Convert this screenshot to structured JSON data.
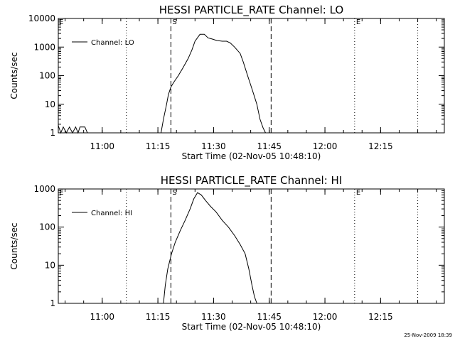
{
  "chart_data": [
    {
      "type": "line",
      "title": "HESSI PARTICLE_RATE Channel: LO",
      "xlabel": "Start Time (02-Nov-05 10:48:10)",
      "ylabel": "Counts/sec",
      "yscale": "log",
      "ylim": [
        1,
        10000
      ],
      "xlim": [
        "10:48:10",
        "12:32:10"
      ],
      "x_ticks": [
        "11:00",
        "11:15",
        "11:30",
        "11:45",
        "12:00",
        "12:15"
      ],
      "y_ticks": [
        "1",
        "10",
        "100",
        "1000",
        "10000"
      ],
      "legend": "top-left",
      "series": [
        {
          "name": "Channel: LO",
          "x": [
            "10:48:10",
            "10:48:50",
            "10:49:30",
            "10:50:20",
            "10:51:10",
            "10:52:00",
            "10:52:50",
            "10:53:30",
            "10:54:00",
            "10:55:20",
            "10:56:00",
            "11:15:50",
            "11:16:30",
            "11:17:20",
            "11:17:50",
            "11:18:30",
            "11:19:20",
            "11:20:30",
            "11:21:40",
            "11:23:10",
            "11:24:10",
            "11:25:00",
            "11:26:20",
            "11:27:30",
            "11:28:30",
            "11:29:40",
            "11:30:50",
            "11:32:20",
            "11:33:30",
            "11:34:30",
            "11:35:40",
            "11:37:10",
            "11:38:00",
            "11:39:10",
            "11:40:30",
            "11:41:40",
            "11:42:30",
            "11:43:20",
            "11:44:00"
          ],
          "y": [
            1.8,
            1,
            1.6,
            1,
            1.6,
            1,
            1.6,
            1,
            1.6,
            1.6,
            1,
            1,
            3,
            10,
            22,
            40,
            60,
            100,
            180,
            400,
            800,
            1600,
            2800,
            2800,
            2100,
            1900,
            1700,
            1600,
            1600,
            1400,
            1000,
            600,
            300,
            100,
            30,
            10,
            3,
            1.5,
            1
          ]
        }
      ],
      "markers": [
        {
          "type": "dotted",
          "x": "11:06:30",
          "label": ""
        },
        {
          "type": "dashed",
          "x": "11:18:30",
          "label": "S"
        },
        {
          "type": "dashed",
          "x": "11:45:30",
          "label": ""
        },
        {
          "type": "dotted",
          "x": "12:08:00",
          "label": "E"
        },
        {
          "type": "dotted",
          "x": "12:25:00",
          "label": ""
        }
      ],
      "corner_label": "E"
    },
    {
      "type": "line",
      "title": "HESSI PARTICLE_RATE Channel: HI",
      "xlabel": "Start Time (02-Nov-05 10:48:10)",
      "ylabel": "Counts/sec",
      "yscale": "log",
      "ylim": [
        1,
        1000
      ],
      "xlim": [
        "10:48:10",
        "12:32:10"
      ],
      "x_ticks": [
        "11:00",
        "11:15",
        "11:30",
        "11:45",
        "12:00",
        "12:15"
      ],
      "y_ticks": [
        "1",
        "10",
        "100",
        "1000"
      ],
      "legend": "top-left",
      "series": [
        {
          "name": "Channel: HI",
          "x": [
            "11:16:30",
            "11:17:00",
            "11:17:40",
            "11:18:40",
            "11:19:40",
            "11:21:00",
            "11:22:20",
            "11:23:40",
            "11:24:40",
            "11:25:40",
            "11:26:40",
            "11:27:50",
            "11:29:10",
            "11:30:40",
            "11:32:20",
            "11:34:00",
            "11:35:40",
            "11:37:10",
            "11:38:30",
            "11:39:30",
            "11:40:20",
            "11:41:00",
            "11:41:40"
          ],
          "y": [
            1,
            3,
            8,
            20,
            40,
            80,
            150,
            300,
            550,
            800,
            700,
            500,
            350,
            250,
            150,
            100,
            60,
            35,
            20,
            8,
            3,
            1.5,
            1
          ]
        }
      ],
      "markers": [
        {
          "type": "dotted",
          "x": "11:06:30",
          "label": ""
        },
        {
          "type": "dashed",
          "x": "11:18:30",
          "label": "S"
        },
        {
          "type": "dashed",
          "x": "11:45:30",
          "label": ""
        },
        {
          "type": "dotted",
          "x": "12:08:00",
          "label": "E"
        },
        {
          "type": "dotted",
          "x": "12:25:00",
          "label": ""
        }
      ],
      "corner_label": "E"
    }
  ],
  "footer": {
    "timestamp": "25-Nov-2009 18:39"
  }
}
